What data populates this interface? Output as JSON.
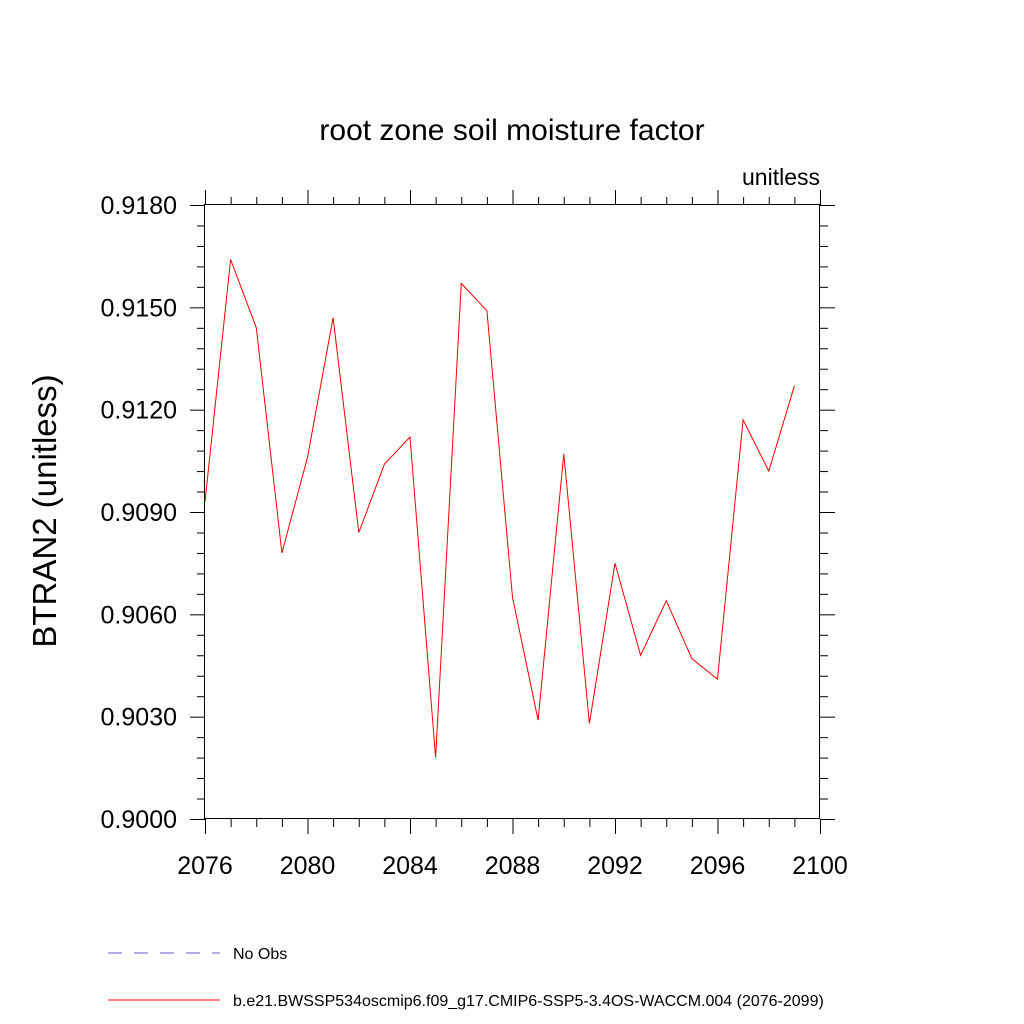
{
  "chart_data": {
    "type": "line",
    "title": "root zone soil moisture factor",
    "units_label": "unitless",
    "xlabel": "",
    "ylabel": "BTRAN2  (unitless)",
    "xlim": [
      2076,
      2100
    ],
    "ylim": [
      0.9,
      0.918
    ],
    "x_ticks": [
      2076,
      2080,
      2084,
      2088,
      2092,
      2096,
      2100
    ],
    "x_tick_labels": [
      "2076",
      "2080",
      "2084",
      "2088",
      "2092",
      "2096",
      "2100"
    ],
    "y_ticks": [
      0.9,
      0.903,
      0.906,
      0.909,
      0.912,
      0.915,
      0.918
    ],
    "y_tick_labels": [
      "0.9000",
      "0.9030",
      "0.9060",
      "0.9090",
      "0.9120",
      "0.9150",
      "0.9180"
    ],
    "grid": false,
    "legend_position": "bottom",
    "series": [
      {
        "name": "b.e21.BWSSP534oscmip6.f09_g17.CMIP6-SSP5-3.4OS-WACCM.004 (2076-2099)",
        "color": "#ff0000",
        "style": "solid",
        "x": [
          2076,
          2077,
          2078,
          2079,
          2080,
          2081,
          2082,
          2083,
          2084,
          2085,
          2086,
          2087,
          2088,
          2089,
          2090,
          2091,
          2092,
          2093,
          2094,
          2095,
          2096,
          2097,
          2098,
          2099
        ],
        "y": [
          0.9093,
          0.9164,
          0.9144,
          0.9078,
          0.9106,
          0.9147,
          0.9084,
          0.9104,
          0.9112,
          0.9018,
          0.9157,
          0.9149,
          0.9065,
          0.9029,
          0.9107,
          0.9028,
          0.9075,
          0.9048,
          0.9064,
          0.9047,
          0.9041,
          0.9117,
          0.9102,
          0.9127
        ]
      }
    ],
    "legend": [
      {
        "label": "No Obs",
        "color": "#6a5acd",
        "style": "dashed"
      },
      {
        "label": "b.e21.BWSSP534oscmip6.f09_g17.CMIP6-SSP5-3.4OS-WACCM.004 (2076-2099)",
        "color": "#ff0000",
        "style": "solid"
      }
    ]
  }
}
